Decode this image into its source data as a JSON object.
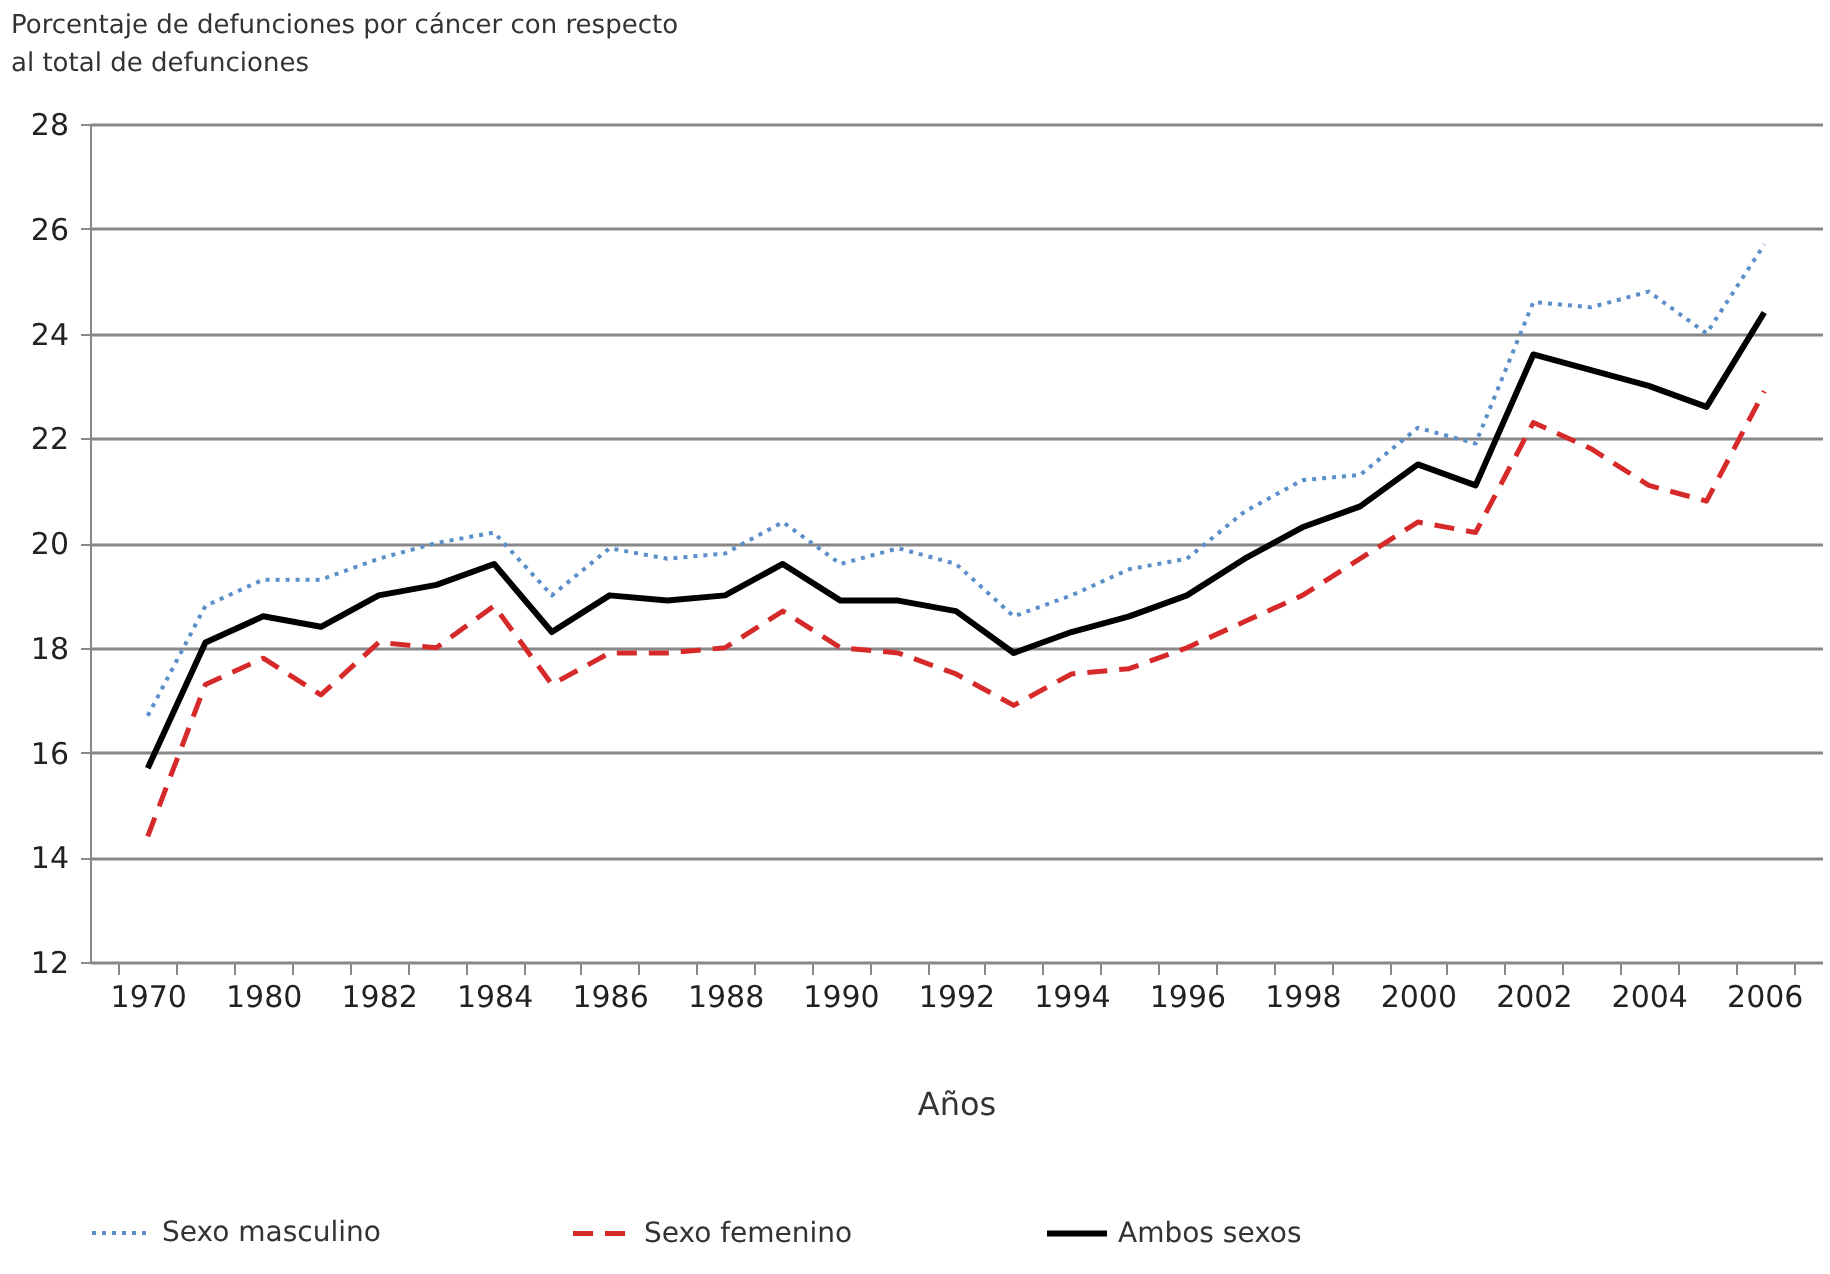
{
  "chart_data": {
    "type": "line",
    "ylabel": "Porcentaje de defunciones por cáncer con respecto al total de defunciones",
    "xlabel": "Años",
    "categories": [
      "1970",
      null,
      "1980",
      null,
      "1982",
      null,
      "1984",
      null,
      "1986",
      null,
      "1988",
      null,
      "1990",
      null,
      "1992",
      null,
      "1994",
      null,
      "1996",
      null,
      "1998",
      null,
      "2000",
      null,
      "2002",
      null,
      "2004",
      null,
      "2006"
    ],
    "series": [
      {
        "name": "Sexo masculino",
        "color": "#5b8fc9",
        "line_style": "dotted",
        "values": [
          16.7,
          18.8,
          19.3,
          19.3,
          19.7,
          20.0,
          20.2,
          19.0,
          19.9,
          19.7,
          19.8,
          20.4,
          19.6,
          19.9,
          19.6,
          18.6,
          19.0,
          19.5,
          19.7,
          20.6,
          21.2,
          21.3,
          22.2,
          21.9,
          24.6,
          24.5,
          24.8,
          24.0,
          25.7
        ]
      },
      {
        "name": "Sexo femenino",
        "color": "#d62a2a",
        "line_style": "dashed",
        "values": [
          14.4,
          17.3,
          17.8,
          17.1,
          18.1,
          18.0,
          18.8,
          17.3,
          17.9,
          17.9,
          18.0,
          18.7,
          18.0,
          17.9,
          17.5,
          16.9,
          17.5,
          17.6,
          18.0,
          18.5,
          19.0,
          19.7,
          20.4,
          20.2,
          22.3,
          21.8,
          21.1,
          20.8,
          22.9
        ]
      },
      {
        "name": "Ambos sexos",
        "color": "#000000",
        "line_style": "solid",
        "values": [
          15.7,
          18.1,
          18.6,
          18.4,
          19.0,
          19.2,
          19.6,
          18.3,
          19.0,
          18.9,
          19.0,
          19.6,
          18.9,
          18.9,
          18.7,
          17.9,
          18.3,
          18.6,
          19.0,
          19.7,
          20.3,
          20.7,
          21.5,
          21.1,
          23.6,
          23.3,
          23.0,
          22.6,
          24.4
        ]
      }
    ],
    "ylim": [
      12,
      28
    ],
    "yticks": [
      12,
      14,
      16,
      18,
      20,
      22,
      24,
      26,
      28
    ],
    "grid": "y",
    "legend": "bottom"
  }
}
